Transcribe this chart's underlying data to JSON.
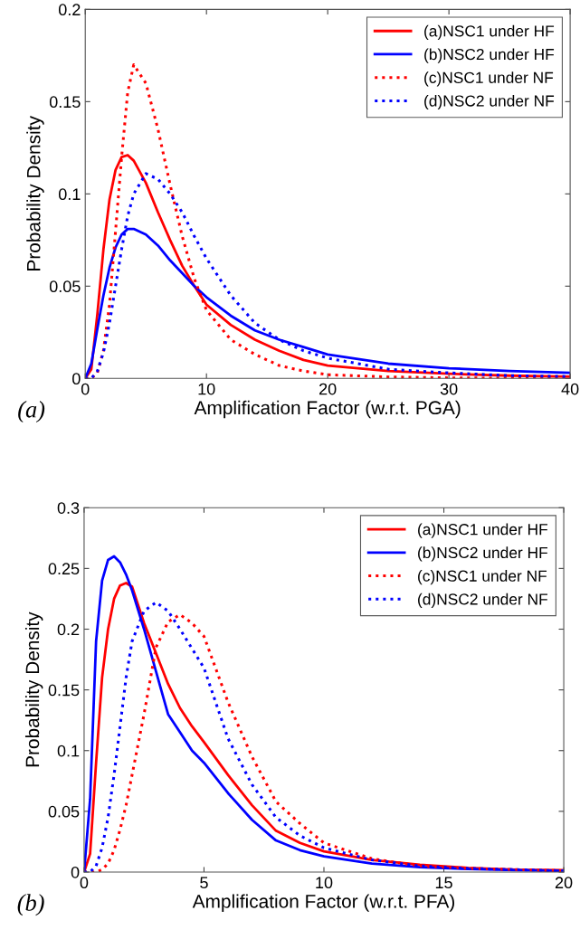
{
  "chart_data": [
    {
      "type": "line",
      "xlabel": "Amplification Factor (w.r.t. PGA)",
      "ylabel": "Probability Density",
      "xlim": [
        0,
        40
      ],
      "ylim": [
        0,
        0.2
      ],
      "xticks": [
        0,
        10,
        20,
        30,
        40
      ],
      "yticks": [
        0,
        0.05,
        0.1,
        0.15,
        0.2
      ],
      "legend": "top right",
      "grid": false,
      "marker": "none",
      "annotations": [
        "(a)"
      ],
      "x": [
        0,
        0.5,
        1,
        1.5,
        2,
        2.5,
        3,
        3.5,
        4,
        5,
        6,
        7,
        8,
        9,
        10,
        12,
        14,
        16,
        18,
        20,
        25,
        30,
        35,
        40
      ],
      "series": [
        {
          "name": "(a)NSC1 under HF",
          "color": "#ff0000",
          "line_style": "solid",
          "values": [
            0,
            0.005,
            0.035,
            0.07,
            0.097,
            0.113,
            0.12,
            0.121,
            0.118,
            0.106,
            0.09,
            0.075,
            0.061,
            0.05,
            0.04,
            0.029,
            0.021,
            0.015,
            0.01,
            0.007,
            0.004,
            0.0025,
            0.0015,
            0.001
          ]
        },
        {
          "name": "(b)NSC2 under HF",
          "color": "#0000ff",
          "line_style": "solid",
          "values": [
            0,
            0.008,
            0.027,
            0.045,
            0.06,
            0.071,
            0.078,
            0.081,
            0.081,
            0.078,
            0.072,
            0.064,
            0.057,
            0.05,
            0.044,
            0.034,
            0.026,
            0.021,
            0.017,
            0.013,
            0.008,
            0.0055,
            0.004,
            0.003
          ]
        },
        {
          "name": "(c)NSC1 under NF",
          "color": "#ff0000",
          "line_style": "dotted",
          "values": [
            0,
            0,
            0.003,
            0.015,
            0.04,
            0.08,
            0.12,
            0.155,
            0.17,
            0.16,
            0.135,
            0.105,
            0.077,
            0.054,
            0.037,
            0.021,
            0.013,
            0.007,
            0.004,
            0.002,
            0.0008,
            0.0003,
            0.0001,
            0
          ]
        },
        {
          "name": "(d)NSC2 under NF",
          "color": "#0000ff",
          "line_style": "dotted",
          "values": [
            0,
            0,
            0.004,
            0.014,
            0.03,
            0.05,
            0.07,
            0.088,
            0.1,
            0.111,
            0.108,
            0.1,
            0.09,
            0.077,
            0.065,
            0.045,
            0.03,
            0.021,
            0.015,
            0.011,
            0.005,
            0.003,
            0.0015,
            0.001
          ]
        }
      ]
    },
    {
      "type": "line",
      "xlabel": "Amplification Factor (w.r.t. PFA)",
      "ylabel": "Probability Density",
      "xlim": [
        0,
        20
      ],
      "ylim": [
        0,
        0.3
      ],
      "xticks": [
        0,
        5,
        10,
        15,
        20
      ],
      "yticks": [
        0,
        0.05,
        0.1,
        0.15,
        0.2,
        0.25,
        0.3
      ],
      "legend": "top right",
      "grid": false,
      "marker": "none",
      "annotations": [
        "(b)"
      ],
      "x": [
        0,
        0.25,
        0.5,
        0.75,
        1,
        1.25,
        1.5,
        1.75,
        2,
        2.5,
        3,
        3.5,
        4,
        4.5,
        5,
        6,
        7,
        8,
        9,
        10,
        12,
        14,
        16,
        18,
        20
      ],
      "series": [
        {
          "name": "(a)NSC1 under HF",
          "color": "#ff0000",
          "line_style": "solid",
          "values": [
            0,
            0.015,
            0.09,
            0.16,
            0.2,
            0.225,
            0.236,
            0.238,
            0.235,
            0.205,
            0.18,
            0.155,
            0.135,
            0.12,
            0.107,
            0.08,
            0.055,
            0.034,
            0.024,
            0.017,
            0.01,
            0.006,
            0.0035,
            0.002,
            0.0015
          ]
        },
        {
          "name": "(b)NSC2 under HF",
          "color": "#0000ff",
          "line_style": "solid",
          "values": [
            0,
            0.06,
            0.19,
            0.24,
            0.257,
            0.26,
            0.255,
            0.245,
            0.232,
            0.2,
            0.165,
            0.13,
            0.115,
            0.1,
            0.09,
            0.065,
            0.043,
            0.026,
            0.018,
            0.013,
            0.007,
            0.004,
            0.0025,
            0.0015,
            0.001
          ]
        },
        {
          "name": "(c)NSC1 under NF",
          "color": "#ff0000",
          "line_style": "dotted",
          "values": [
            0,
            0,
            0,
            0.002,
            0.007,
            0.018,
            0.035,
            0.055,
            0.08,
            0.13,
            0.185,
            0.206,
            0.212,
            0.205,
            0.194,
            0.14,
            0.095,
            0.058,
            0.04,
            0.024,
            0.011,
            0.005,
            0.003,
            0.002,
            0.001
          ]
        },
        {
          "name": "(d)NSC2 under NF",
          "color": "#0000ff",
          "line_style": "dotted",
          "values": [
            0,
            0,
            0.005,
            0.02,
            0.045,
            0.08,
            0.12,
            0.16,
            0.19,
            0.215,
            0.222,
            0.215,
            0.2,
            0.184,
            0.168,
            0.11,
            0.072,
            0.045,
            0.03,
            0.02,
            0.01,
            0.005,
            0.003,
            0.002,
            0.001
          ]
        }
      ]
    }
  ]
}
